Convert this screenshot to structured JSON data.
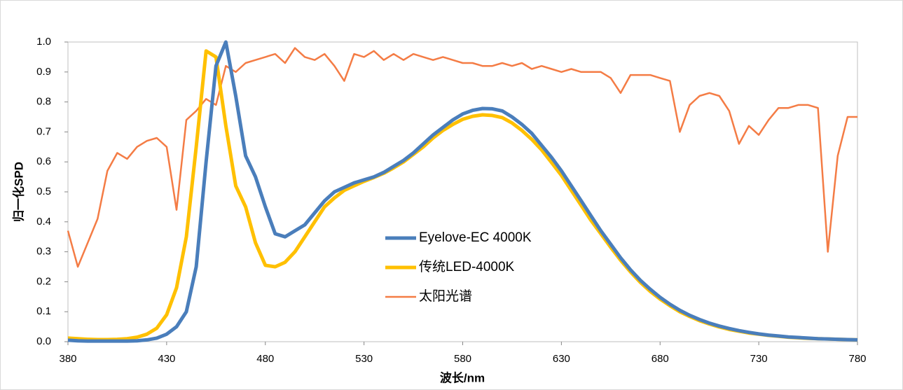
{
  "chart_data": {
    "type": "line",
    "xlabel": "波长/nm",
    "ylabel": "归一化SPD",
    "x": [
      380,
      385,
      390,
      395,
      400,
      405,
      410,
      415,
      420,
      425,
      430,
      435,
      440,
      445,
      450,
      455,
      460,
      465,
      470,
      475,
      480,
      485,
      490,
      495,
      500,
      505,
      510,
      515,
      520,
      525,
      530,
      535,
      540,
      545,
      550,
      555,
      560,
      565,
      570,
      575,
      580,
      585,
      590,
      595,
      600,
      605,
      610,
      615,
      620,
      625,
      630,
      635,
      640,
      645,
      650,
      655,
      660,
      665,
      670,
      675,
      680,
      685,
      690,
      695,
      700,
      705,
      710,
      715,
      720,
      725,
      730,
      735,
      740,
      745,
      750,
      755,
      760,
      765,
      770,
      775,
      780
    ],
    "xlim": [
      380,
      780
    ],
    "xticks": [
      380,
      430,
      480,
      530,
      580,
      630,
      680,
      730,
      780
    ],
    "ylim": [
      0,
      1
    ],
    "yticks": [
      {
        "value": 0,
        "label": "0.0"
      },
      0.1,
      0.2,
      0.3,
      0.4,
      0.5,
      0.6,
      0.7,
      0.8,
      0.9,
      {
        "value": 1,
        "label": "1.0"
      }
    ],
    "series": [
      {
        "name": "Eyelove-EC 4000K",
        "color": "#4a7ebb",
        "width": 5,
        "values": [
          0.005,
          0.003,
          0.002,
          0.002,
          0.002,
          0.002,
          0.002,
          0.003,
          0.006,
          0.012,
          0.025,
          0.05,
          0.1,
          0.25,
          0.6,
          0.92,
          1.0,
          0.82,
          0.62,
          0.55,
          0.45,
          0.36,
          0.35,
          0.37,
          0.39,
          0.43,
          0.47,
          0.5,
          0.515,
          0.53,
          0.54,
          0.55,
          0.565,
          0.585,
          0.605,
          0.63,
          0.66,
          0.69,
          0.715,
          0.74,
          0.76,
          0.772,
          0.778,
          0.777,
          0.77,
          0.75,
          0.725,
          0.695,
          0.655,
          0.615,
          0.57,
          0.52,
          0.47,
          0.42,
          0.37,
          0.325,
          0.28,
          0.24,
          0.205,
          0.175,
          0.148,
          0.125,
          0.105,
          0.088,
          0.074,
          0.062,
          0.052,
          0.044,
          0.037,
          0.031,
          0.026,
          0.022,
          0.019,
          0.016,
          0.014,
          0.012,
          0.01,
          0.009,
          0.008,
          0.007,
          0.006
        ]
      },
      {
        "name": "传统LED-4000K",
        "color": "#ffc000",
        "width": 5,
        "values": [
          0.012,
          0.01,
          0.008,
          0.007,
          0.007,
          0.008,
          0.01,
          0.015,
          0.025,
          0.045,
          0.09,
          0.18,
          0.35,
          0.65,
          0.97,
          0.95,
          0.72,
          0.52,
          0.45,
          0.33,
          0.255,
          0.25,
          0.265,
          0.3,
          0.35,
          0.4,
          0.45,
          0.48,
          0.505,
          0.52,
          0.535,
          0.548,
          0.562,
          0.58,
          0.6,
          0.625,
          0.65,
          0.68,
          0.705,
          0.725,
          0.742,
          0.752,
          0.757,
          0.755,
          0.748,
          0.73,
          0.705,
          0.675,
          0.64,
          0.598,
          0.555,
          0.505,
          0.455,
          0.405,
          0.36,
          0.315,
          0.272,
          0.233,
          0.198,
          0.168,
          0.142,
          0.12,
          0.1,
          0.084,
          0.07,
          0.059,
          0.049,
          0.041,
          0.035,
          0.029,
          0.025,
          0.021,
          0.018,
          0.015,
          0.013,
          0.011,
          0.01,
          0.009,
          0.008,
          0.007,
          0.006
        ]
      },
      {
        "name": "太阳光谱",
        "color": "#f47c45",
        "width": 2.5,
        "values": [
          0.37,
          0.25,
          0.33,
          0.41,
          0.57,
          0.63,
          0.61,
          0.65,
          0.67,
          0.68,
          0.65,
          0.44,
          0.74,
          0.77,
          0.81,
          0.79,
          0.92,
          0.9,
          0.93,
          0.94,
          0.95,
          0.96,
          0.93,
          0.98,
          0.95,
          0.94,
          0.96,
          0.92,
          0.87,
          0.96,
          0.95,
          0.97,
          0.94,
          0.96,
          0.94,
          0.96,
          0.95,
          0.94,
          0.95,
          0.94,
          0.93,
          0.93,
          0.92,
          0.92,
          0.93,
          0.92,
          0.93,
          0.91,
          0.92,
          0.91,
          0.9,
          0.91,
          0.9,
          0.9,
          0.9,
          0.88,
          0.83,
          0.89,
          0.89,
          0.89,
          0.88,
          0.87,
          0.7,
          0.79,
          0.82,
          0.83,
          0.82,
          0.77,
          0.66,
          0.72,
          0.69,
          0.74,
          0.78,
          0.78,
          0.79,
          0.79,
          0.78,
          0.3,
          0.62,
          0.75,
          0.75
        ]
      }
    ]
  }
}
